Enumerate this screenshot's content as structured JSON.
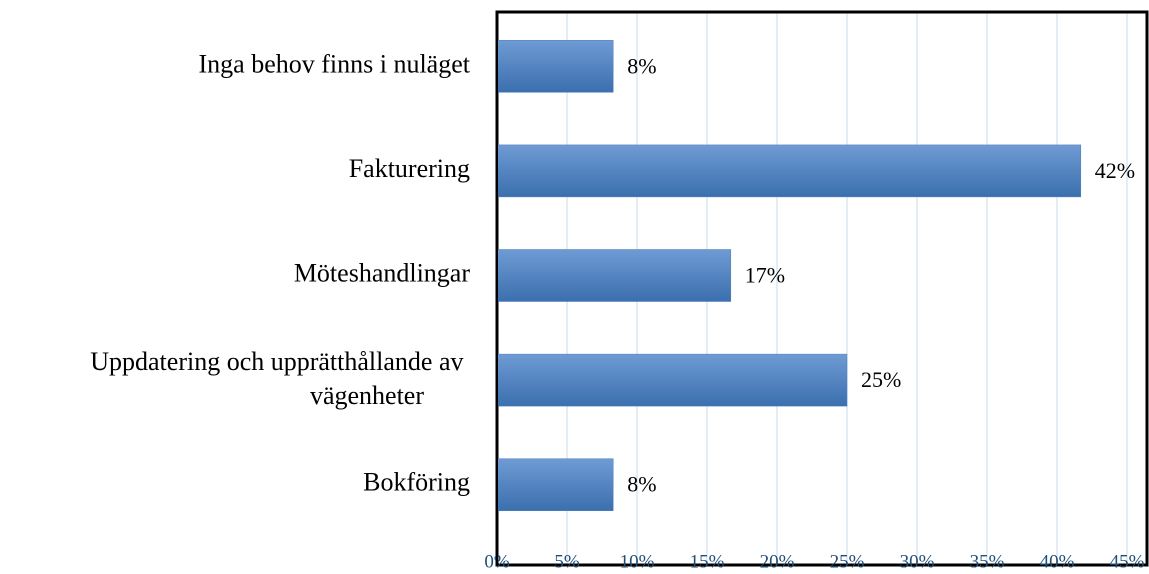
{
  "chart_data": {
    "type": "bar",
    "orientation": "horizontal",
    "categories": [
      "Inga behov finns i nuläget",
      "Fakturering",
      "Möteshandlingar",
      "Uppdatering och upprätthållande av vägenheter",
      "Bokföring"
    ],
    "values": [
      8.3,
      41.7,
      16.7,
      25,
      8.3
    ],
    "value_labels": [
      "8%",
      "42%",
      "17%",
      "25%",
      "8%"
    ],
    "color": "#4a7ebb",
    "xlim": [
      0,
      45
    ],
    "xticks": [
      {
        "value": 0,
        "label": "0%"
      },
      {
        "value": 5,
        "label": "5%"
      },
      {
        "value": 10,
        "label": "10%"
      },
      {
        "value": 15,
        "label": "15%"
      },
      {
        "value": 20,
        "label": "20%"
      },
      {
        "value": 25,
        "label": "25%"
      },
      {
        "value": 30,
        "label": "30%"
      },
      {
        "value": 35,
        "label": "35%"
      },
      {
        "value": 40,
        "label": "40%"
      },
      {
        "value": 45,
        "label": "45%"
      }
    ],
    "grid": true
  }
}
